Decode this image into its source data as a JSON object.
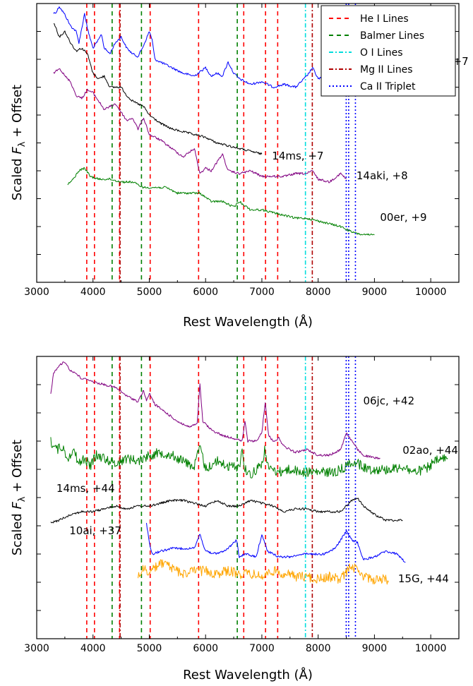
{
  "chart_data": [
    {
      "type": "line",
      "panel": "top",
      "xlabel": "Rest Wavelength (Å)",
      "ylabel_prefix": "Scaled ",
      "ylabel_sym": "F",
      "ylabel_sub": "λ",
      "ylabel_suffix": " + Offset",
      "xlim": [
        3000,
        10500
      ],
      "ylim": [
        0,
        10
      ],
      "xticks": [
        3000,
        4000,
        5000,
        6000,
        7000,
        8000,
        9000,
        10000
      ],
      "grid": false,
      "legend": {
        "placement": "top-right",
        "entries": [
          {
            "label": "He I Lines",
            "color": "#ff0000",
            "dash": "6,5"
          },
          {
            "label": "Balmer Lines",
            "color": "#008000",
            "dash": "6,5"
          },
          {
            "label": "O I Lines",
            "color": "#00dddd",
            "dash": "6,3,2,3"
          },
          {
            "label": "Mg II Lines",
            "color": "#b00000",
            "dash": "6,3,2,3"
          },
          {
            "label": "Ca II Triplet",
            "color": "#0000ff",
            "dash": "2,3"
          }
        ]
      },
      "series": [
        {
          "name": "06jc, +7",
          "color": "#0000ff",
          "label_pos": [
            9880,
            2.2
          ],
          "x": [
            3300,
            3350,
            3400,
            3500,
            3600,
            3700,
            3750,
            3800,
            3850,
            3900,
            4000,
            4100,
            4150,
            4200,
            4300,
            4400,
            4500,
            4600,
            4700,
            4800,
            4900,
            5000,
            5050,
            5100,
            5200,
            5400,
            5600,
            5800,
            6000,
            6100,
            6200,
            6300,
            6400,
            6500,
            6600,
            6800,
            7000,
            7200,
            7400,
            7600,
            7700,
            7800,
            7900,
            8000,
            8200,
            8400,
            8600,
            8800,
            9000,
            9100,
            9200,
            9300,
            9400,
            9600,
            9800,
            10000,
            10200,
            10400
          ],
          "y": [
            0.35,
            0.3,
            0.1,
            0.4,
            0.8,
            1.0,
            1.4,
            0.9,
            0.35,
            0.9,
            1.6,
            1.3,
            1.1,
            1.6,
            1.8,
            1.4,
            1.2,
            1.6,
            1.8,
            1.9,
            1.5,
            1.0,
            1.3,
            2.0,
            2.1,
            2.3,
            2.5,
            2.6,
            2.3,
            2.6,
            2.5,
            2.6,
            2.1,
            2.5,
            2.7,
            2.9,
            2.8,
            3.0,
            2.9,
            3.0,
            2.8,
            2.6,
            2.3,
            2.7,
            2.6,
            2.8,
            2.7,
            2.8,
            2.8,
            2.3,
            2.2,
            2.6,
            2.8,
            2.8,
            2.9,
            2.9,
            3.0,
            3.0
          ]
        },
        {
          "name": "14ms, +7",
          "color": "#000000",
          "label_pos": [
            7180,
            5.6
          ],
          "x": [
            3300,
            3350,
            3400,
            3500,
            3600,
            3700,
            3800,
            3900,
            4000,
            4100,
            4200,
            4300,
            4400,
            4500,
            4600,
            4700,
            4800,
            4900,
            5000,
            5200,
            5400,
            5600,
            5800,
            6000,
            6200,
            6400,
            6600,
            6800,
            7000
          ],
          "y": [
            0.7,
            0.9,
            1.2,
            1.0,
            1.4,
            1.7,
            1.6,
            1.8,
            2.5,
            2.7,
            2.6,
            3.0,
            3.0,
            3.0,
            3.3,
            3.5,
            3.6,
            3.7,
            4.0,
            4.3,
            4.5,
            4.6,
            4.7,
            4.8,
            5.0,
            5.1,
            5.2,
            5.3,
            5.4
          ]
        },
        {
          "name": "14aki, +8",
          "color": "#800080",
          "label_pos": [
            8680,
            6.3
          ],
          "x": [
            3300,
            3400,
            3500,
            3600,
            3700,
            3800,
            3900,
            4000,
            4200,
            4400,
            4600,
            4700,
            4800,
            4900,
            5000,
            5200,
            5400,
            5600,
            5800,
            5900,
            6000,
            6100,
            6300,
            6400,
            6600,
            6800,
            7000,
            7200,
            7400,
            7600,
            7800,
            7900,
            8000,
            8200,
            8400,
            8500
          ],
          "y": [
            2.5,
            2.3,
            2.6,
            2.8,
            3.3,
            3.4,
            3.1,
            3.2,
            3.8,
            3.6,
            4.2,
            4.1,
            4.5,
            4.1,
            4.7,
            4.9,
            5.2,
            5.5,
            5.2,
            6.1,
            5.9,
            6.0,
            5.4,
            6.0,
            6.1,
            6.0,
            6.2,
            6.2,
            6.2,
            6.1,
            6.1,
            6.0,
            6.3,
            6.4,
            6.1,
            6.3
          ]
        },
        {
          "name": "00er, +9",
          "color": "#008000",
          "label_pos": [
            9100,
            7.8
          ],
          "x": [
            3550,
            3650,
            3750,
            3850,
            3950,
            4100,
            4300,
            4500,
            4700,
            4900,
            5100,
            5300,
            5500,
            5700,
            5900,
            6100,
            6300,
            6500,
            6600,
            6800,
            7000,
            7200,
            7400,
            7600,
            7800,
            8000,
            8200,
            8400,
            8600,
            8800,
            9000
          ],
          "y": [
            6.5,
            6.3,
            6.0,
            5.9,
            6.2,
            6.3,
            6.3,
            6.4,
            6.4,
            6.6,
            6.6,
            6.6,
            6.8,
            6.8,
            6.8,
            7.1,
            7.1,
            7.3,
            7.1,
            7.4,
            7.4,
            7.5,
            7.6,
            7.7,
            7.7,
            7.8,
            7.9,
            8.0,
            8.2,
            8.3,
            8.3
          ]
        }
      ]
    },
    {
      "type": "line",
      "panel": "bottom",
      "xlabel": "Rest Wavelength (Å)",
      "ylabel_prefix": "Scaled ",
      "ylabel_sym": "F",
      "ylabel_sub": "λ",
      "ylabel_suffix": " + Offset",
      "xlim": [
        3000,
        10500
      ],
      "ylim": [
        0,
        10
      ],
      "xticks": [
        3000,
        4000,
        5000,
        6000,
        7000,
        8000,
        9000,
        10000
      ],
      "grid": false,
      "series": [
        {
          "name": "06jc, +42",
          "color": "#800080",
          "label_pos": [
            8800,
            1.7
          ],
          "x": [
            3250,
            3300,
            3400,
            3500,
            3600,
            3700,
            3800,
            3900,
            4000,
            4200,
            4400,
            4600,
            4800,
            4900,
            4950,
            5000,
            5100,
            5300,
            5500,
            5700,
            5850,
            5900,
            5950,
            6100,
            6300,
            6500,
            6650,
            6700,
            6750,
            6900,
            7000,
            7060,
            7120,
            7200,
            7300,
            7400,
            7600,
            7800,
            8000,
            8200,
            8400,
            8500,
            8600,
            8700,
            8800,
            9000,
            9100
          ],
          "y": [
            1.3,
            0.6,
            0.3,
            0.2,
            0.5,
            0.6,
            0.8,
            0.8,
            0.9,
            1.0,
            1.1,
            1.4,
            1.6,
            1.2,
            1.6,
            1.3,
            1.7,
            2.0,
            2.3,
            2.5,
            2.4,
            1.0,
            2.3,
            2.6,
            2.8,
            2.9,
            3.0,
            2.3,
            3.0,
            3.0,
            2.7,
            1.6,
            2.8,
            3.0,
            2.9,
            3.2,
            3.4,
            3.3,
            3.5,
            3.5,
            3.3,
            2.7,
            3.0,
            3.3,
            3.5,
            3.6,
            3.6
          ]
        },
        {
          "name": "02ao, +44",
          "color": "#008000",
          "label_pos": [
            9500,
            3.45
          ],
          "x": [
            3250,
            3350,
            3450,
            3550,
            3650,
            3750,
            3850,
            3950,
            4050,
            4200,
            4400,
            4600,
            4800,
            5000,
            5200,
            5400,
            5600,
            5800,
            5900,
            6000,
            6200,
            6400,
            6600,
            6650,
            6700,
            6800,
            7000,
            7050,
            7100,
            7300,
            7500,
            7700,
            7900,
            8100,
            8300,
            8500,
            8600,
            8700,
            8900,
            9100,
            9300,
            9500,
            9700,
            9900,
            10100,
            10300
          ],
          "y": [
            3.0,
            3.3,
            3.2,
            3.6,
            3.3,
            3.8,
            3.6,
            3.9,
            3.5,
            3.6,
            3.8,
            3.6,
            3.7,
            3.5,
            3.4,
            3.5,
            3.7,
            3.9,
            3.2,
            4.0,
            3.7,
            3.9,
            3.9,
            3.3,
            4.0,
            4.2,
            3.8,
            3.3,
            3.9,
            4.1,
            4.0,
            4.1,
            4.1,
            4.1,
            4.1,
            3.9,
            3.7,
            3.8,
            4.0,
            4.0,
            4.0,
            3.9,
            4.1,
            4.0,
            3.7,
            3.6
          ]
        },
        {
          "name": "14ms, +44",
          "color": "#000000",
          "label_pos": [
            3350,
            4.8
          ],
          "x": [
            3250,
            3400,
            3600,
            3800,
            4000,
            4200,
            4400,
            4600,
            4800,
            5000,
            5200,
            5400,
            5600,
            5800,
            6000,
            6200,
            6400,
            6600,
            6800,
            7000,
            7200,
            7400,
            7600,
            7800,
            8000,
            8200,
            8400,
            8600,
            8700,
            8800,
            9000,
            9200,
            9400,
            9500
          ],
          "y": [
            5.9,
            5.8,
            5.6,
            5.5,
            5.5,
            5.4,
            5.3,
            5.4,
            5.3,
            5.3,
            5.2,
            5.1,
            5.1,
            5.2,
            5.3,
            5.1,
            5.3,
            5.3,
            5.1,
            5.2,
            5.3,
            5.5,
            5.4,
            5.4,
            5.5,
            5.5,
            5.5,
            5.1,
            5.0,
            5.3,
            5.6,
            5.8,
            5.8,
            5.8
          ]
        },
        {
          "name": "10ai, +37",
          "color": "#0000ff",
          "label_pos": [
            3580,
            6.3
          ],
          "x": [
            4950,
            5000,
            5050,
            5200,
            5400,
            5600,
            5800,
            5900,
            6000,
            6200,
            6400,
            6550,
            6600,
            6700,
            6900,
            7000,
            7100,
            7300,
            7500,
            7700,
            7900,
            8100,
            8300,
            8500,
            8600,
            8700,
            8800,
            9000,
            9200,
            9400,
            9550
          ],
          "y": [
            5.9,
            6.6,
            7.0,
            6.9,
            6.8,
            6.8,
            6.8,
            6.3,
            6.9,
            7.0,
            6.8,
            6.5,
            7.1,
            7.0,
            7.1,
            6.3,
            6.9,
            7.1,
            7.1,
            7.0,
            7.0,
            7.0,
            6.8,
            6.2,
            6.5,
            6.6,
            7.2,
            7.1,
            6.9,
            7.0,
            7.3
          ]
        },
        {
          "name": "15G, +44",
          "color": "#ffa500",
          "label_pos": [
            9420,
            8.0
          ],
          "x": [
            4800,
            4900,
            5000,
            5200,
            5400,
            5600,
            5800,
            6000,
            6200,
            6400,
            6600,
            6800,
            7000,
            7200,
            7400,
            7600,
            7800,
            8000,
            8200,
            8400,
            8600,
            8700,
            8800,
            9000,
            9200,
            9250
          ],
          "y": [
            7.8,
            7.5,
            7.7,
            7.3,
            7.5,
            7.7,
            7.6,
            7.6,
            7.7,
            7.6,
            7.7,
            7.7,
            7.8,
            7.6,
            7.7,
            7.8,
            7.8,
            7.9,
            7.8,
            7.9,
            7.4,
            7.6,
            7.8,
            7.9,
            7.9,
            8.0
          ]
        }
      ]
    }
  ],
  "reference_lines": [
    {
      "set": "He I Lines",
      "color": "#ff0000",
      "dash": "6,5",
      "x": [
        3889,
        4026,
        4471,
        5016,
        5876,
        6678,
        7065,
        7281
      ]
    },
    {
      "set": "Balmer Lines",
      "color": "#008000",
      "dash": "6,5",
      "x": [
        4340,
        4861,
        6563
      ]
    },
    {
      "set": "O I Lines",
      "color": "#00dddd",
      "dash": "6,3,2,3",
      "x": [
        7774
      ]
    },
    {
      "set": "Mg II Lines",
      "color": "#b00000",
      "dash": "6,3,2,3",
      "x": [
        4481,
        7896
      ]
    },
    {
      "set": "Ca II Triplet",
      "color": "#0000ff",
      "dash": "2,3",
      "x": [
        8498,
        8542,
        8662
      ]
    }
  ]
}
